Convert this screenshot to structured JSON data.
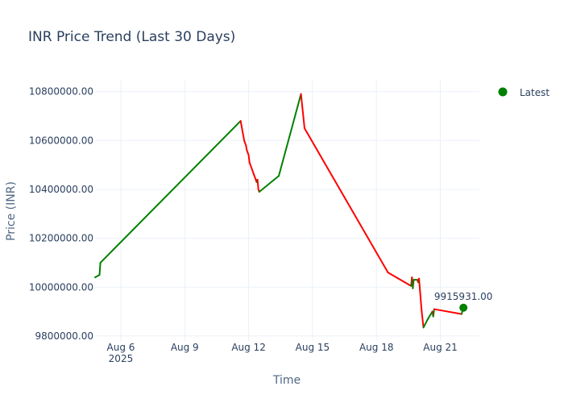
{
  "chart_data": {
    "type": "line",
    "title": "INR Price Trend (Last 30 Days)",
    "xlabel": "Time",
    "ylabel": "Price (INR)",
    "xlim": [
      "2025-08-04T19:00",
      "2025-08-22T20:00"
    ],
    "ylim": [
      9780000,
      10845000
    ],
    "grid": true,
    "legend_position": "top-right",
    "y_ticks": [
      {
        "value": 9800000,
        "label": "9800000.00"
      },
      {
        "value": 10000000,
        "label": "10000000.00"
      },
      {
        "value": 10200000,
        "label": "10200000.00"
      },
      {
        "value": 10400000,
        "label": "10400000.00"
      },
      {
        "value": 10600000,
        "label": "10600000.00"
      },
      {
        "value": 10800000,
        "label": "10800000.00"
      }
    ],
    "x_ticks": [
      {
        "value": "2025-08-06T00:00",
        "label": "Aug 6",
        "sublabel": "2025"
      },
      {
        "value": "2025-08-09T00:00",
        "label": "Aug 9"
      },
      {
        "value": "2025-08-12T00:00",
        "label": "Aug 12"
      },
      {
        "value": "2025-08-15T00:00",
        "label": "Aug 15"
      },
      {
        "value": "2025-08-18T00:00",
        "label": "Aug 18"
      },
      {
        "value": "2025-08-21T00:00",
        "label": "Aug 21"
      }
    ],
    "colors": {
      "up": "#008000",
      "down": "#ff0000",
      "latest_marker": "#008000"
    },
    "series": [
      {
        "values": [
          {
            "x": "2025-08-04T19:00",
            "y": 10040000
          },
          {
            "x": "2025-08-05T00:00",
            "y": 10050000
          },
          {
            "x": "2025-08-05T01:00",
            "y": 10100000
          },
          {
            "x": "2025-08-11T15:00",
            "y": 10680000
          },
          {
            "x": "2025-08-11T17:00",
            "y": 10640000
          },
          {
            "x": "2025-08-11T19:00",
            "y": 10600000
          },
          {
            "x": "2025-08-11T21:00",
            "y": 10580000
          },
          {
            "x": "2025-08-11T22:00",
            "y": 10560000
          },
          {
            "x": "2025-08-12T00:00",
            "y": 10540000
          },
          {
            "x": "2025-08-12T01:00",
            "y": 10510000
          },
          {
            "x": "2025-08-12T06:00",
            "y": 10460000
          },
          {
            "x": "2025-08-12T09:00",
            "y": 10430000
          },
          {
            "x": "2025-08-12T10:00",
            "y": 10440000
          },
          {
            "x": "2025-08-12T11:00",
            "y": 10400000
          },
          {
            "x": "2025-08-12T12:00",
            "y": 10390000
          },
          {
            "x": "2025-08-13T10:00",
            "y": 10455000
          },
          {
            "x": "2025-08-14T11:00",
            "y": 10790000
          },
          {
            "x": "2025-08-14T15:00",
            "y": 10650000
          },
          {
            "x": "2025-08-18T13:00",
            "y": 10060000
          },
          {
            "x": "2025-08-19T15:00",
            "y": 10005000
          },
          {
            "x": "2025-08-19T16:00",
            "y": 10040000
          },
          {
            "x": "2025-08-19T17:00",
            "y": 9995000
          },
          {
            "x": "2025-08-19T18:00",
            "y": 10030000
          },
          {
            "x": "2025-08-19T22:00",
            "y": 10030000
          },
          {
            "x": "2025-08-19T23:00",
            "y": 10020000
          },
          {
            "x": "2025-08-20T00:00",
            "y": 10035000
          },
          {
            "x": "2025-08-20T01:00",
            "y": 9990000
          },
          {
            "x": "2025-08-20T03:00",
            "y": 9900000
          },
          {
            "x": "2025-08-20T05:00",
            "y": 9835000
          },
          {
            "x": "2025-08-20T10:00",
            "y": 9870000
          },
          {
            "x": "2025-08-20T15:00",
            "y": 9900000
          },
          {
            "x": "2025-08-20T16:00",
            "y": 9880000
          },
          {
            "x": "2025-08-20T17:00",
            "y": 9910000
          },
          {
            "x": "2025-08-22T00:00",
            "y": 9890000
          },
          {
            "x": "2025-08-22T02:00",
            "y": 9915931
          }
        ]
      }
    ],
    "latest_point": {
      "x": "2025-08-22T02:00",
      "y": 9915931,
      "label": "9915931.00",
      "legend": "Latest"
    }
  }
}
